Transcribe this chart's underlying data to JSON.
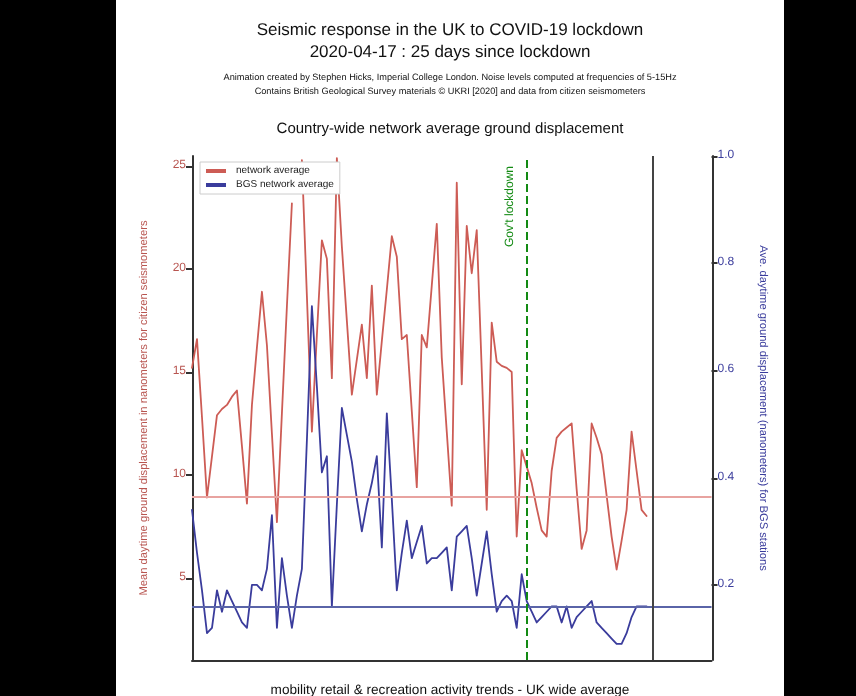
{
  "chart_data": {
    "type": "line",
    "title": "Seismic response in the UK to COVID-19 lockdown",
    "subtitle": "2020-04-17 : 25 days since lockdown",
    "annotations": [
      "Animation created by Stephen Hicks, Imperial College London. Noise levels computed at frequencies of 5-15Hz",
      "Contains British Geological Survey materials © UKRI [2020] and data from citizen seismometers",
      "Country-wide network average ground displacement",
      "mobility retail & recreation activity trends - UK wide average",
      "Gov't lockdown"
    ],
    "ylabel": "Mean daytime ground displacement in nanometers for citizen seismometers",
    "y2label": "Ave. daytime ground displacement (nanometers) for BGS stations",
    "categories": [
      null,
      null,
      null,
      null,
      null,
      null,
      null,
      null,
      null,
      null,
      null,
      null,
      null,
      null,
      null,
      null,
      null,
      null,
      null,
      null,
      null,
      null,
      null,
      null,
      null,
      null,
      null,
      null,
      null,
      null,
      null,
      null,
      null,
      null,
      null,
      null,
      null,
      null,
      null,
      null,
      null,
      null,
      null,
      null,
      null,
      null,
      null,
      null,
      null,
      null,
      null,
      null,
      null,
      null,
      null,
      null,
      null,
      null,
      null,
      null,
      null,
      null,
      null,
      null,
      null,
      null,
      null,
      null,
      null,
      null,
      null,
      null,
      null,
      null,
      null,
      null,
      null,
      null,
      null,
      null,
      null,
      null,
      null,
      null,
      null,
      null,
      null,
      null,
      null,
      null,
      null,
      null,
      null,
      null,
      null,
      null,
      null,
      null,
      null,
      null,
      null,
      null,
      null,
      null,
      null
    ],
    "series": [
      {
        "name": "network average",
        "color": "#cd5c55",
        "values": [
          15.2,
          16.6,
          12.8,
          8.9,
          10.9,
          12.9,
          13.2,
          13.4,
          13.8,
          14.1,
          11.4,
          8.6,
          13.4,
          16.2,
          18.9,
          16.3,
          12.0,
          7.7,
          13.0,
          18.2,
          23.2,
          null,
          25.3,
          18.7,
          12.1,
          16.8,
          21.4,
          20.5,
          14.7,
          25.4,
          21.1,
          17.5,
          13.9,
          15.6,
          17.3,
          14.7,
          19.2,
          13.9,
          16.5,
          19.0,
          21.6,
          20.6,
          16.6,
          16.8,
          13.1,
          9.4,
          16.8,
          16.2,
          19.2,
          22.2,
          15.7,
          12.1,
          8.5,
          24.2,
          14.4,
          22.1,
          19.8,
          21.9,
          15.1,
          8.3,
          17.4,
          15.5,
          15.3,
          15.2,
          15.0,
          7.0,
          11.2,
          10.4,
          9.6,
          8.4,
          7.3,
          7.0,
          10.2,
          11.8,
          12.1,
          12.3,
          12.5,
          9.3,
          6.4,
          7.3,
          12.5,
          11.8,
          11.0,
          9.0,
          7.0,
          5.4,
          6.8,
          8.3,
          12.1,
          10.2,
          8.3,
          8.0,
          null,
          null,
          null,
          null,
          null,
          null,
          null,
          null,
          null,
          null,
          null,
          null,
          null
        ]
      },
      {
        "name": "BGS network average",
        "color": "#3a3c9c",
        "axis": "y2",
        "values": [
          0.34,
          0.26,
          0.19,
          0.11,
          0.12,
          0.19,
          0.15,
          0.19,
          0.17,
          0.15,
          0.13,
          0.12,
          0.2,
          0.2,
          0.19,
          0.23,
          0.33,
          0.12,
          0.25,
          0.18,
          0.12,
          0.18,
          0.23,
          0.47,
          0.72,
          0.57,
          0.41,
          0.44,
          0.16,
          0.35,
          0.53,
          0.48,
          0.43,
          0.36,
          0.3,
          0.35,
          0.39,
          0.44,
          0.27,
          0.52,
          0.36,
          0.19,
          0.26,
          0.32,
          0.25,
          0.28,
          0.31,
          0.24,
          0.25,
          0.25,
          0.26,
          0.27,
          0.19,
          0.29,
          0.3,
          0.31,
          0.25,
          0.18,
          0.24,
          0.3,
          0.22,
          0.15,
          0.17,
          0.18,
          0.17,
          0.12,
          0.22,
          0.17,
          0.15,
          0.13,
          0.14,
          0.15,
          0.16,
          0.16,
          0.13,
          0.16,
          0.12,
          0.14,
          0.15,
          0.16,
          0.17,
          0.13,
          0.12,
          0.11,
          0.1,
          0.09,
          0.09,
          0.11,
          0.14,
          0.16,
          0.16,
          0.16,
          null,
          null,
          null,
          null,
          null,
          null,
          null,
          null,
          null,
          null,
          null,
          null,
          null
        ]
      }
    ],
    "ylim": [
      1,
      25.5
    ],
    "yticks": [
      5,
      10,
      15,
      20,
      25
    ],
    "y2lim": [
      0.06,
      1.0
    ],
    "y2ticks": [
      0.2,
      0.4,
      0.6,
      0.8,
      {
        "value": 1.0,
        "label": "1.0"
      }
    ],
    "tick_labels": "y",
    "ref_lines": [
      {
        "axis": "y",
        "value": 8.9,
        "color": "#e8a3a0"
      },
      {
        "axis": "y2",
        "value": 0.16,
        "color": "#5a64a8"
      }
    ],
    "legend": "top left",
    "grid": false,
    "line_style": "solid"
  }
}
